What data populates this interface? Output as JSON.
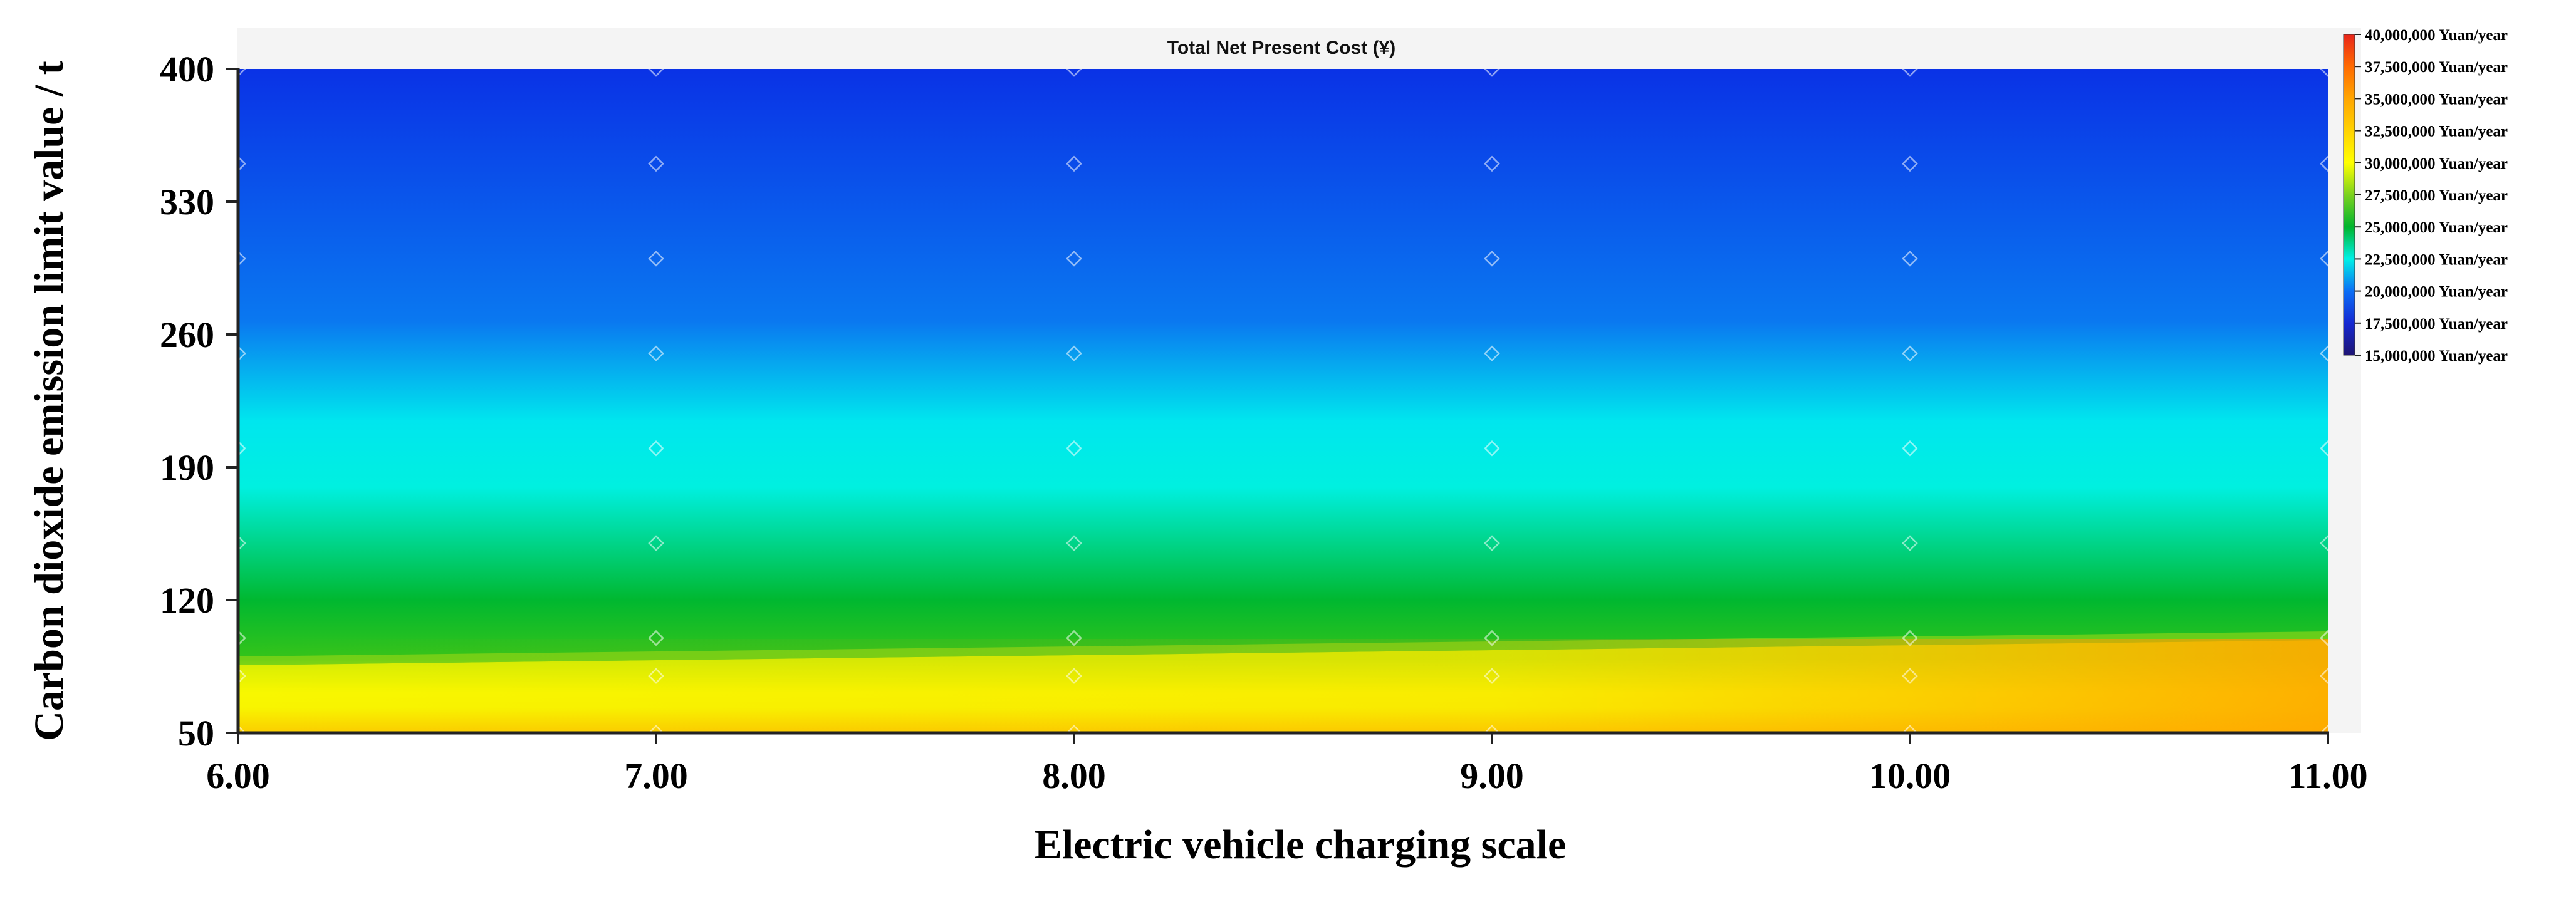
{
  "chart_data": {
    "type": "heatmap",
    "title": "Total Net Present Cost (¥)",
    "xlabel": "Electric vehicle charging scale",
    "ylabel": "Carbon dioxide emission limit value / t",
    "xlim": [
      6.0,
      11.0
    ],
    "ylim": [
      50,
      400
    ],
    "x_ticks": [
      "6.00",
      "7.00",
      "8.00",
      "9.00",
      "10.00",
      "11.00"
    ],
    "y_ticks": [
      "50",
      "120",
      "190",
      "260",
      "330",
      "400"
    ],
    "grid": false,
    "legend_placement": "right",
    "colorscale": {
      "min": 15000000,
      "max": 40000000,
      "labels": [
        "40,000,000 Yuan/year",
        "37,500,000 Yuan/year",
        "35,000,000 Yuan/year",
        "32,500,000 Yuan/year",
        "30,000,000 Yuan/year",
        "27,500,000 Yuan/year",
        "25,000,000 Yuan/year",
        "22,500,000 Yuan/year",
        "20,000,000 Yuan/year",
        "17,500,000 Yuan/year",
        "15,000,000 Yuan/year"
      ],
      "colors": [
        "#e8251a",
        "#ff6a00",
        "#ffa500",
        "#ffd200",
        "#ffff00",
        "#7bd21e",
        "#00b42d",
        "#00f0e6",
        "#0a6ef5",
        "#1428d2",
        "#1e1473"
      ]
    },
    "x": [
      6.0,
      7.0,
      8.0,
      9.0,
      10.0,
      11.0
    ],
    "y": [
      50,
      80,
      100,
      150,
      200,
      250,
      300,
      350,
      400
    ],
    "z": [
      [
        31000000,
        31200000,
        31500000,
        31800000,
        32200000,
        32600000
      ],
      [
        29500000,
        29800000,
        30100000,
        30400000,
        30700000,
        31000000
      ],
      [
        26500000,
        27000000,
        27500000,
        27800000,
        28200000,
        28500000
      ],
      [
        25200000,
        25300000,
        25400000,
        25500000,
        25700000,
        25800000
      ],
      [
        23000000,
        23100000,
        23100000,
        23200000,
        23300000,
        23400000
      ],
      [
        21400000,
        21500000,
        21500000,
        21600000,
        21600000,
        21700000
      ],
      [
        20200000,
        20200000,
        20300000,
        20300000,
        20400000,
        20400000
      ],
      [
        19600000,
        19600000,
        19700000,
        19700000,
        19800000,
        19800000
      ],
      [
        19300000,
        19300000,
        19400000,
        19400000,
        19500000,
        19500000
      ]
    ]
  }
}
